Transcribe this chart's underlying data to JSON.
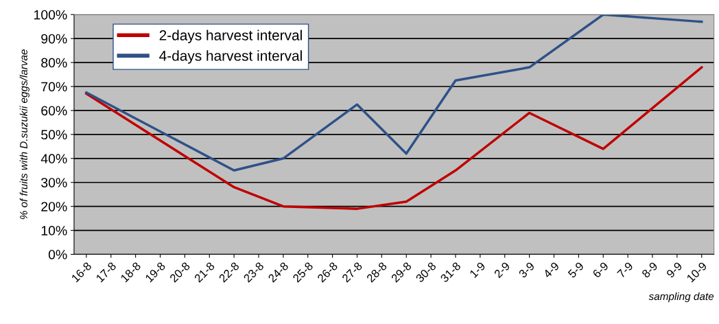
{
  "chart_data": {
    "type": "line",
    "xlabel": "sampling date",
    "ylabel": "% of fruits with D.suzukii eggs/larvae",
    "categories": [
      "16-8",
      "17-8",
      "18-8",
      "19-8",
      "20-8",
      "21-8",
      "22-8",
      "23-8",
      "24-8",
      "25-8",
      "26-8",
      "27-8",
      "28-8",
      "29-8",
      "30-8",
      "31-8",
      "1-9",
      "2-9",
      "3-9",
      "4-9",
      "5-9",
      "6-9",
      "7-9",
      "8-9",
      "9-9",
      "10-9"
    ],
    "series": [
      {
        "name": "2-days harvest interval",
        "color": "#c00000",
        "values": [
          67,
          null,
          null,
          null,
          null,
          null,
          28,
          null,
          20,
          null,
          null,
          19,
          null,
          22,
          null,
          35,
          null,
          null,
          59,
          null,
          null,
          44,
          null,
          null,
          null,
          78
        ]
      },
      {
        "name": "4-days harvest interval",
        "color": "#2e5188",
        "values": [
          67.5,
          null,
          null,
          null,
          null,
          null,
          35,
          null,
          40,
          null,
          null,
          62.5,
          null,
          42,
          null,
          72.5,
          null,
          null,
          78,
          null,
          null,
          100,
          null,
          null,
          null,
          97
        ]
      }
    ],
    "ylim": [
      0,
      100
    ],
    "yticks": [
      {
        "value": 0,
        "label": "0%"
      },
      {
        "value": 10,
        "label": "10%"
      },
      {
        "value": 20,
        "label": "20%"
      },
      {
        "value": 30,
        "label": "30%"
      },
      {
        "value": 40,
        "label": "40%"
      },
      {
        "value": 50,
        "label": "50%"
      },
      {
        "value": 60,
        "label": "60%"
      },
      {
        "value": 70,
        "label": "70%"
      },
      {
        "value": 80,
        "label": "80%"
      },
      {
        "value": 90,
        "label": "90%"
      },
      {
        "value": 100,
        "label": "100%"
      }
    ],
    "grid": "y",
    "legend": "top left",
    "marker": "none",
    "line_style": "solid"
  }
}
